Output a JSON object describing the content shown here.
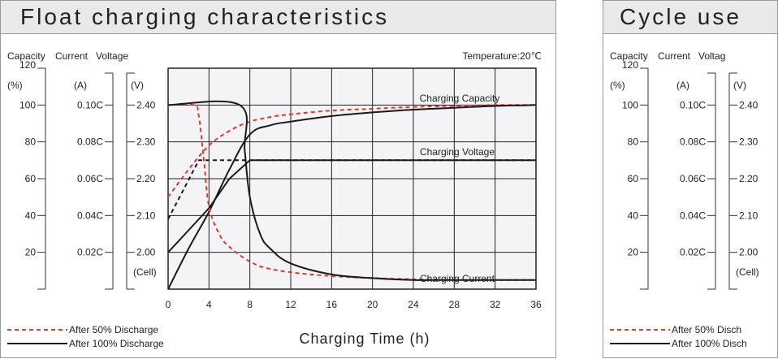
{
  "charts": [
    {
      "id": "p1",
      "title": "Float charging characteristics",
      "temperature": "Temperature:20℃",
      "axis_headers": {
        "capacity": "Capacity",
        "current": "Current",
        "voltage": "Voltage"
      },
      "axis_units": {
        "capacity": "(%)",
        "current": "(A)",
        "voltage": "(V)",
        "cell": "(Cell)"
      },
      "capacity_ticks": [
        "120",
        "100",
        "80",
        "60",
        "40",
        "20"
      ],
      "current_ticks": [
        "0.10C",
        "0.08C",
        "0.06C",
        "0.04C",
        "0.02C"
      ],
      "voltage_ticks": [
        "2.40",
        "2.30",
        "2.20",
        "2.10",
        "2.00"
      ],
      "x_ticks": [
        "0",
        "4",
        "8",
        "12",
        "16",
        "20",
        "24",
        "28",
        "32",
        "36"
      ],
      "xlabel": "Charging Time (h)",
      "curve_labels": {
        "capacity": "Charging Capacity",
        "voltage": "Charging Voltage",
        "current": "Charging Current"
      },
      "legend": [
        {
          "label": "After 50% Discharge",
          "color": "#e03a2a",
          "style": "dashed"
        },
        {
          "label": "After 100% Discharge",
          "color": "#1a1a1a",
          "style": "solid"
        }
      ]
    },
    {
      "id": "p2",
      "title": "Cycle use",
      "axis_headers": {
        "capacity": "Capacity",
        "current": "Current",
        "voltage": "Voltag"
      },
      "axis_units": {
        "capacity": "(%)",
        "current": "(A)",
        "voltage": "(V)",
        "cell": "(Cell)"
      },
      "capacity_ticks": [
        "120",
        "100",
        "80",
        "60",
        "40",
        "20"
      ],
      "current_ticks": [
        "0.10C",
        "0.08C",
        "0.06C",
        "0.04C",
        "0.02C"
      ],
      "voltage_ticks": [
        "2.40",
        "2.30",
        "2.20",
        "2.10",
        "2.00"
      ],
      "legend": [
        {
          "label": "After 50% Disch",
          "color": "#e03a2a",
          "style": "dashed"
        },
        {
          "label": "After 100% Disch",
          "color": "#1a1a1a",
          "style": "solid"
        }
      ]
    }
  ],
  "chart_data": {
    "type": "line",
    "title": "Float charging characteristics",
    "xlabel": "Charging Time (h)",
    "xlim": [
      0,
      36
    ],
    "x_ticks": [
      0,
      4,
      8,
      12,
      16,
      20,
      24,
      28,
      32,
      36
    ],
    "y_axes": [
      {
        "label": "Capacity",
        "unit": "(%)",
        "range": [
          0,
          120
        ]
      },
      {
        "label": "Current",
        "unit": "(A)",
        "range": [
          0,
          0.12
        ],
        "ticks": [
          "0.10C",
          "0.08C",
          "0.06C",
          "0.04C",
          "0.02C"
        ]
      },
      {
        "label": "Voltage",
        "unit": "(V)",
        "range": [
          1.9,
          2.5
        ]
      }
    ],
    "grid": true,
    "series": [
      {
        "name": "Charging Capacity",
        "condition": "After 50% Discharge",
        "axis": "Capacity",
        "style": "dashed",
        "color": "#e03a2a",
        "x": [
          0,
          2,
          4,
          6,
          8,
          10,
          12,
          16,
          20,
          24,
          28,
          32,
          36
        ],
        "y": [
          50,
          65,
          78,
          86,
          91,
          93.5,
          95,
          97,
          98,
          99,
          99.5,
          100,
          100
        ]
      },
      {
        "name": "Charging Capacity",
        "condition": "After 100% Discharge",
        "axis": "Capacity",
        "style": "solid",
        "color": "#1a1a1a",
        "x": [
          0,
          2,
          4,
          6,
          8,
          10,
          12,
          16,
          20,
          24,
          28,
          32,
          36
        ],
        "y": [
          0,
          22,
          42,
          65,
          84,
          89,
          91,
          94,
          96,
          97.5,
          98.5,
          99.5,
          100
        ]
      },
      {
        "name": "Charging Voltage",
        "condition": "After 50% Discharge",
        "axis": "Voltage",
        "style": "dashed",
        "color": "#1a1a1a",
        "x": [
          0,
          3,
          4,
          8,
          36
        ],
        "y": [
          2.09,
          2.25,
          2.25,
          2.25,
          2.25
        ]
      },
      {
        "name": "Charging Voltage",
        "condition": "After 100% Discharge",
        "axis": "Voltage",
        "style": "solid",
        "color": "#1a1a1a",
        "x": [
          0,
          2,
          4,
          6,
          8,
          10,
          36
        ],
        "y": [
          2.0,
          2.06,
          2.12,
          2.2,
          2.25,
          2.25,
          2.25
        ]
      },
      {
        "name": "Charging Current",
        "condition": "After 50% Discharge",
        "axis": "Current",
        "style": "dashed",
        "color": "#e03a2a",
        "x": [
          0,
          2.5,
          3,
          3.5,
          4,
          5,
          6,
          8,
          10,
          14,
          20,
          28,
          36
        ],
        "y": [
          0.1,
          0.1,
          0.094,
          0.07,
          0.045,
          0.03,
          0.023,
          0.015,
          0.011,
          0.008,
          0.006,
          0.005,
          0.005
        ]
      },
      {
        "name": "Charging Current",
        "condition": "After 100% Discharge",
        "axis": "Current",
        "style": "solid",
        "color": "#1a1a1a",
        "x": [
          0,
          7,
          7.5,
          8,
          9,
          10,
          12,
          16,
          20,
          24,
          28,
          32,
          36
        ],
        "y": [
          0.1,
          0.1,
          0.075,
          0.05,
          0.03,
          0.022,
          0.014,
          0.008,
          0.006,
          0.005,
          0.005,
          0.005,
          0.005
        ]
      }
    ]
  }
}
